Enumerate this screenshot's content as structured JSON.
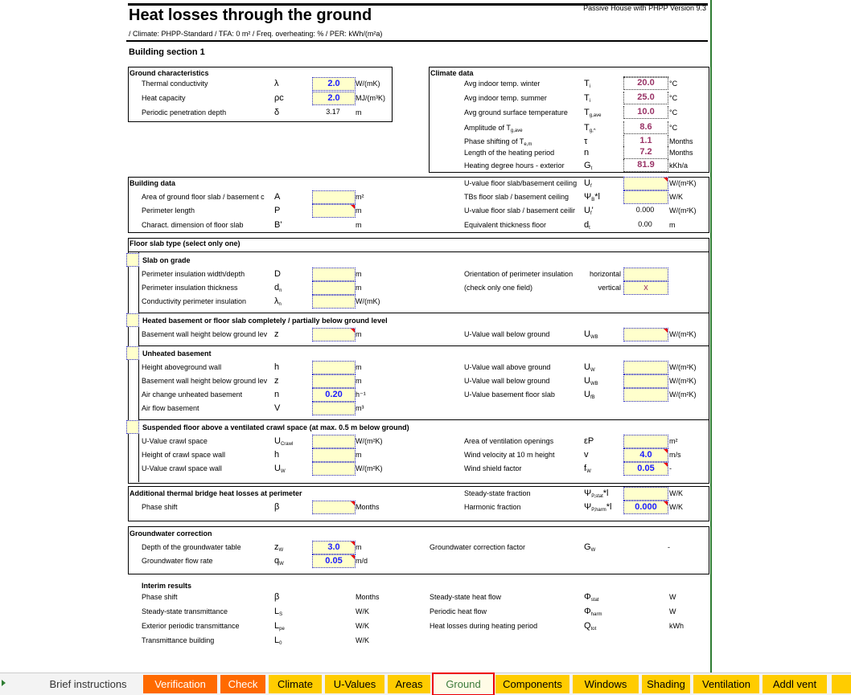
{
  "header": {
    "title": "Heat losses through the ground",
    "version": "Passive House with PHPP Version 9.3",
    "subtitle": " /  Climate: PHPP-Standard / TFA: 0 m²  /  Freq. overheating:  % /  PER:  kWh/(m²a)",
    "section": "Building section 1"
  },
  "ground": {
    "title": "Ground characteristics",
    "rows": [
      {
        "label": "Thermal conductivity",
        "sym": "λ",
        "value": "2.0",
        "unit": "W/(mK)",
        "box": "input blue"
      },
      {
        "label": "Heat capacity",
        "sym": "ρc",
        "value": "2.0",
        "unit": "MJ/(m³K)",
        "box": "input blue"
      },
      {
        "label": "Periodic penetration depth",
        "sym": "δ",
        "value": "3.17",
        "unit": "m",
        "box": "plain"
      }
    ]
  },
  "climate": {
    "title": "Climate data",
    "rows": [
      {
        "label": "Avg indoor temp. winter",
        "sym": "T",
        "sub": "i",
        "value": "20.0",
        "unit": "°C",
        "box": "purple"
      },
      {
        "label": "Avg indoor temp. summer",
        "sym": "T",
        "sub": "i",
        "value": "25.0",
        "unit": "°C",
        "box": "purple"
      },
      {
        "label": "Avg ground surface temperature",
        "sym": "T",
        "sub": "g,ave",
        "value": "10.0",
        "unit": "°C",
        "box": "purple"
      },
      {
        "label": "Amplitude of T",
        "label_sub": "g,ave",
        "sym": "T",
        "sub": "g,^",
        "value": "8.6",
        "unit": "°C",
        "box": "purple"
      },
      {
        "label": "Phase shifting of T",
        "label_sub": "e,m",
        "sym": "τ",
        "value": "1.1",
        "unit": "Months",
        "box": "purple"
      },
      {
        "label": "Length of the heating period",
        "sym": "n",
        "value": "7.2",
        "unit": "Months",
        "box": "purple"
      },
      {
        "label": "Heating degree hours - exterior",
        "sym": "G",
        "sub": "t",
        "value": "81.9",
        "unit": "kKh/a",
        "box": "purple"
      }
    ]
  },
  "building": {
    "title": "Building data",
    "left": [
      {
        "label": "Area of ground floor slab / basement c",
        "sym": "A",
        "value": "",
        "unit": "m²",
        "box": "input"
      },
      {
        "label": "Perimeter length",
        "sym": "P",
        "value": "",
        "unit": "m",
        "box": "input",
        "flag": true
      },
      {
        "label": "Charact. dimension of floor slab",
        "sym": "B'",
        "value": "",
        "unit": "m",
        "box": "plain"
      }
    ],
    "right": [
      {
        "label": "U-value floor slab/basement ceiling",
        "sym": "U",
        "sub": "f",
        "value": "",
        "unit": "W/(m²K)",
        "box": "input",
        "flag": true
      },
      {
        "label": "TBs floor slab / basement ceiling",
        "sym": "Ψ",
        "sub": "B",
        "sym2": "*l",
        "value": "",
        "unit": "W/K",
        "box": "input"
      },
      {
        "label": "U-value floor slab / basement ceilir",
        "sym": "U",
        "sub": "f",
        "sym2": "'",
        "value": "0.000",
        "unit": "W/(m²K)",
        "box": "plain"
      },
      {
        "label": "Equivalent thickness floor",
        "sym": "d",
        "sub": "t",
        "value": "0.00",
        "unit": "m",
        "box": "plain"
      }
    ]
  },
  "floor": {
    "title": "Floor slab type (select only one)",
    "slab": {
      "title": "Slab on grade",
      "left": [
        {
          "label": "Perimeter insulation width/depth",
          "sym": "D",
          "value": "",
          "unit": "m",
          "box": "input"
        },
        {
          "label": "Perimeter insulation thickness",
          "sym": "d",
          "sub": "n",
          "value": "",
          "unit": "m",
          "box": "input"
        },
        {
          "label": "Conductivity perimeter insulation",
          "sym": "λ",
          "sub": "n",
          "value": "",
          "unit": "W/(mK)",
          "box": "input"
        }
      ],
      "right": [
        {
          "label": "Orientation of perimeter insulation",
          "opt": "horizontal",
          "value": "",
          "box": "input"
        },
        {
          "label": "(check only one field)",
          "opt": "vertical",
          "value": "x",
          "box": "input purplex"
        }
      ]
    },
    "heated": {
      "title": "Heated basement or floor slab completely / partially below ground level",
      "left": [
        {
          "label": "Basement wall height below ground lev",
          "sym": "z",
          "value": "",
          "unit": "m",
          "box": "input",
          "flag": true
        }
      ],
      "right": [
        {
          "label": "U-Value wall below ground",
          "sym": "U",
          "sub": "WB",
          "value": "",
          "unit": "W/(m²K)",
          "box": "input",
          "flag": true
        }
      ]
    },
    "unheated": {
      "title": "Unheated basement",
      "left": [
        {
          "label": "Height aboveground wall",
          "sym": "h",
          "value": "",
          "unit": "m",
          "box": "input"
        },
        {
          "label": "Basement wall height below ground lev",
          "sym": "z",
          "value": "",
          "unit": "m",
          "box": "input"
        },
        {
          "label": "Air change unheated basement",
          "sym": "n",
          "value": "0.20",
          "unit": "h⁻¹",
          "box": "input blue"
        },
        {
          "label": "Air flow basement",
          "sym": "V",
          "value": "",
          "unit": "m³",
          "box": "input"
        }
      ],
      "right": [
        {
          "label": "U-Value wall above ground",
          "sym": "U",
          "sub": "W",
          "value": "",
          "unit": "W/(m²K)",
          "box": "input"
        },
        {
          "label": "U-Value wall below ground",
          "sym": "U",
          "sub": "WB",
          "value": "",
          "unit": "W/(m²K)",
          "box": "input"
        },
        {
          "label": "U-Value basement floor slab",
          "sym": "U",
          "sub": "fB",
          "value": "",
          "unit": "W/(m²K)",
          "box": "input"
        }
      ]
    },
    "crawl": {
      "title": "Suspended floor above a ventilated crawl space (at max. 0.5 m below ground)",
      "left": [
        {
          "label": "U-Value crawl space",
          "sym": "U",
          "sub": "Crawl",
          "value": "",
          "unit": "W/(m²K)",
          "box": "input"
        },
        {
          "label": "Height of crawl space wall",
          "sym": "h",
          "value": "",
          "unit": "m",
          "box": "input"
        },
        {
          "label": "U-Value crawl space wall",
          "sym": "U",
          "sub": "W",
          "value": "",
          "unit": "W/(m²K)",
          "box": "input"
        }
      ],
      "right": [
        {
          "label": "Area of ventilation openings",
          "sym": "εP",
          "value": "",
          "unit": "m²",
          "box": "input"
        },
        {
          "label": "Wind velocity at 10 m height",
          "sym": "v",
          "value": "4.0",
          "unit": "m/s",
          "box": "input blue",
          "flag": true
        },
        {
          "label": "Wind shield factor",
          "sym": "f",
          "sub": "W",
          "value": "0.05",
          "unit": "-",
          "box": "input blue",
          "flag": true
        }
      ]
    }
  },
  "thermal_bridge": {
    "title": "Additional thermal bridge heat losses at perimeter",
    "left": [
      {
        "label": "Phase shift",
        "sym": "β",
        "value": "",
        "unit": "Months",
        "box": "input",
        "flag": true
      }
    ],
    "right": [
      {
        "label": "Steady-state fraction",
        "sym": "Ψ",
        "sub": "P,stat",
        "sym2": "*l",
        "value": "",
        "unit": "W/K",
        "box": "input"
      },
      {
        "label": "Harmonic fraction",
        "sym": "Ψ",
        "sub": "P,harm",
        "sym2": "*l",
        "value": "0.000",
        "unit": "W/K",
        "box": "input blue",
        "flag": true
      }
    ]
  },
  "groundwater": {
    "title": "Groundwater correction",
    "left": [
      {
        "label": "Depth of the groundwater table",
        "sym": "z",
        "sub": "W",
        "value": "3.0",
        "unit": "m",
        "box": "input blue",
        "flag": true
      },
      {
        "label": "Groundwater flow rate",
        "sym": "q",
        "sub": "W",
        "value": "0.05",
        "unit": "m/d",
        "box": "input blue",
        "flag": true
      }
    ],
    "right": [
      {
        "label": "Groundwater correction factor",
        "sym": "G",
        "sub": "W",
        "value": "",
        "unit": "-",
        "box": "none"
      }
    ]
  },
  "interim": {
    "title": "Interim results",
    "left": [
      {
        "label": "Phase shift",
        "sym": "β",
        "unit": "Months",
        "box": "none"
      },
      {
        "label": "Steady-state transmittance",
        "sym": "L",
        "sub": "S",
        "unit": "W/K",
        "box": "none"
      },
      {
        "label": "Exterior periodic transmittance",
        "sym": "L",
        "sub": "pe",
        "unit": "W/K",
        "box": "none"
      },
      {
        "label": "Transmittance building",
        "sym": "L",
        "sub": "0",
        "unit": "W/K",
        "box": "none"
      }
    ],
    "right": [
      {
        "label": "Steady-state heat flow",
        "sym": "Φ",
        "sub": "stat",
        "unit": "W",
        "box": "none"
      },
      {
        "label": "Periodic heat flow",
        "sym": "Φ",
        "sub": "harm",
        "unit": "W",
        "box": "none"
      },
      {
        "label": "Heat losses during heating period",
        "sym": "Q",
        "sub": "tot",
        "unit": "kWh",
        "box": "none"
      }
    ]
  },
  "tabs": [
    {
      "label": "Brief instructions",
      "style": "plain"
    },
    {
      "label": "Verification",
      "style": "orange"
    },
    {
      "label": "Check",
      "style": "orange"
    },
    {
      "label": "Climate",
      "style": "yellow"
    },
    {
      "label": "U-Values",
      "style": "yellow"
    },
    {
      "label": "Areas",
      "style": "yellow"
    },
    {
      "label": "Ground",
      "style": "active"
    },
    {
      "label": "Components",
      "style": "yellow"
    },
    {
      "label": "Windows",
      "style": "yellow"
    },
    {
      "label": "Shading",
      "style": "yellow"
    },
    {
      "label": "Ventilation",
      "style": "yellow"
    },
    {
      "label": "Addl vent",
      "style": "yellow"
    }
  ],
  "colors": {
    "input_bg": "#ffffcc",
    "input_value": "#1a1aff",
    "climate_value": "#993366",
    "tab_orange": "#ff6a00",
    "tab_yellow": "#ffcc00",
    "active_tab_outline": "#e00000",
    "sheet_border": "#2e7d32"
  }
}
